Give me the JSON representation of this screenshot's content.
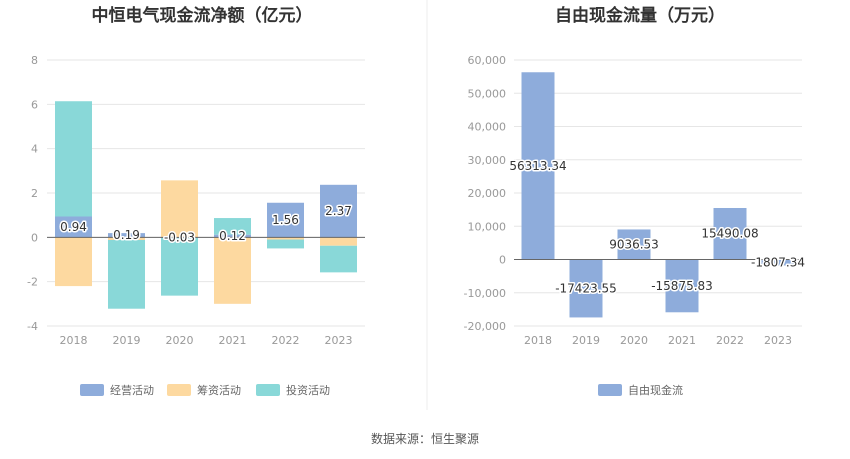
{
  "source_text": "数据来源：恒生聚源",
  "chart_data": [
    {
      "type": "bar",
      "stacked": true,
      "title": "中恒电气现金流净额（亿元）",
      "categories": [
        "2018",
        "2019",
        "2020",
        "2021",
        "2022",
        "2023"
      ],
      "ylim": [
        -4,
        8
      ],
      "yticks": [
        "8",
        "6",
        "4",
        "2",
        "0",
        "-2",
        "-4"
      ],
      "ytick_values": [
        8,
        6,
        4,
        2,
        0,
        -2,
        -4
      ],
      "series": [
        {
          "name": "经营活动",
          "color": "#8eacdb",
          "values": [
            0.94,
            0.19,
            -0.03,
            0.12,
            1.56,
            2.37
          ]
        },
        {
          "name": "筹资活动",
          "color": "#fdd9a0",
          "values": [
            -2.2,
            -0.12,
            2.57,
            -3.0,
            -0.1,
            -0.38
          ]
        },
        {
          "name": "投资活动",
          "color": "#89d8d8",
          "values": [
            5.2,
            -3.1,
            -2.6,
            0.75,
            -0.4,
            -1.2
          ]
        }
      ],
      "data_labels": [
        "0.94",
        "0.19",
        "-0.03",
        "0.12",
        "1.56",
        "2.37"
      ]
    },
    {
      "type": "bar",
      "title": "自由现金流量（万元）",
      "categories": [
        "2018",
        "2019",
        "2020",
        "2021",
        "2022",
        "2023"
      ],
      "ylim": [
        -20000,
        60000
      ],
      "yticks": [
        "60,000",
        "50,000",
        "40,000",
        "30,000",
        "20,000",
        "10,000",
        "0",
        "-10,000",
        "-20,000"
      ],
      "ytick_values": [
        60000,
        50000,
        40000,
        30000,
        20000,
        10000,
        0,
        -10000,
        -20000
      ],
      "series": [
        {
          "name": "自由现金流",
          "color": "#8eacdb",
          "values": [
            56313.34,
            -17423.55,
            9036.53,
            -15875.83,
            15490.08,
            -1807.34
          ]
        }
      ],
      "data_labels": [
        "56313.34",
        "-17423.55",
        "9036.53",
        "-15875.83",
        "15490.08",
        "-1807.34"
      ]
    }
  ]
}
